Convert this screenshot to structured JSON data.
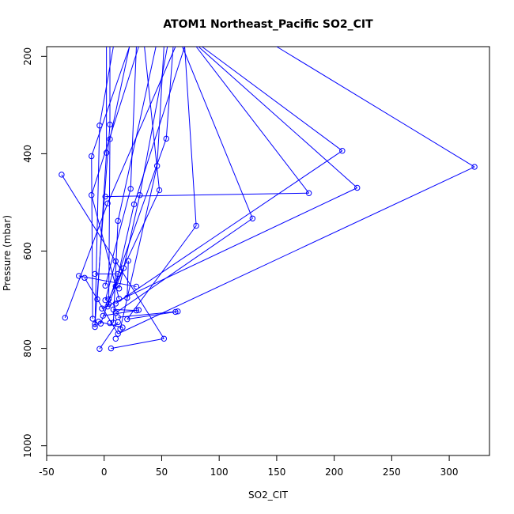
{
  "chart_data": {
    "type": "line",
    "title": "ATOM1 Northeast_Pacific SO2_CIT",
    "xlabel": "SO2_CIT",
    "ylabel": "Pressure (mbar)",
    "xlim": [
      -50,
      335
    ],
    "ylim": [
      1020,
      180
    ],
    "x_ticks": [
      -50,
      0,
      50,
      100,
      150,
      200,
      250,
      300
    ],
    "x_tick_labels": [
      "-50",
      "0",
      "50",
      "100",
      "150",
      "200",
      "250",
      "300"
    ],
    "y_ticks": [
      200,
      400,
      600,
      800,
      1000
    ],
    "y_tick_labels": [
      "200",
      "400",
      "600",
      "800",
      "1000"
    ],
    "grid": false,
    "series_color": "#0000ff",
    "marker": "open-circle",
    "series": [
      {
        "points": [
          [
            -4,
            801
          ],
          [
            6,
            800
          ],
          [
            10,
            780
          ],
          [
            12,
            770
          ],
          [
            14,
            760
          ],
          [
            16,
            757
          ],
          [
            62,
            725
          ],
          [
            64,
            724
          ],
          [
            20,
            740
          ],
          [
            12,
            736
          ],
          [
            8,
            720
          ],
          [
            3,
            714
          ],
          [
            -10,
            739
          ],
          [
            -34,
            737
          ],
          [
            10,
            727
          ],
          [
            28,
            722
          ],
          [
            30,
            721
          ],
          [
            -1,
            733
          ],
          [
            -8,
            750
          ],
          [
            -3,
            749
          ],
          [
            5,
            748
          ],
          [
            8,
            747
          ],
          [
            12,
            746
          ],
          [
            -5,
            745
          ],
          [
            -8,
            756
          ],
          [
            4,
            709
          ],
          [
            10,
            708
          ],
          [
            13,
            698
          ],
          [
            1,
            701
          ],
          [
            -6,
            699
          ],
          [
            4,
            699
          ],
          [
            20,
            696
          ],
          [
            28,
            673
          ],
          [
            1,
            671
          ],
          [
            -22,
            651
          ],
          [
            -17,
            655
          ],
          [
            -8,
            647
          ],
          [
            13,
            677
          ],
          [
            10,
            672
          ],
          [
            12,
            647
          ],
          [
            17,
            635
          ],
          [
            10,
            621
          ],
          [
            21,
            620
          ],
          [
            -2,
            718
          ],
          [
            -11,
            485
          ],
          [
            -11,
            405
          ],
          [
            -37,
            443
          ],
          [
            1,
            488
          ],
          [
            3,
            502
          ],
          [
            12,
            538
          ],
          [
            26,
            504
          ],
          [
            31,
            485
          ],
          [
            23,
            472
          ],
          [
            48,
            475
          ],
          [
            46,
            425
          ],
          [
            54,
            369
          ],
          [
            80,
            548
          ],
          [
            129,
            533
          ],
          [
            178,
            481
          ],
          [
            207,
            394
          ],
          [
            220,
            470
          ],
          [
            322,
            427
          ],
          [
            52,
            780
          ],
          [
            -4,
            342
          ],
          [
            5,
            340
          ],
          [
            5,
            370
          ],
          [
            2,
            398
          ]
        ]
      }
    ],
    "segments_to_top": [
      [
        [
          2,
          398
        ],
        [
          2,
          180
        ]
      ],
      [
        [
          5,
          340
        ],
        [
          5,
          180
        ]
      ],
      [
        [
          5,
          370
        ],
        [
          22,
          180
        ]
      ],
      [
        [
          -4,
          342
        ],
        [
          8,
          180
        ]
      ],
      [
        [
          -11,
          485
        ],
        [
          30,
          180
        ]
      ],
      [
        [
          -11,
          405
        ],
        [
          22,
          180
        ]
      ],
      [
        [
          23,
          472
        ],
        [
          28,
          180
        ]
      ],
      [
        [
          26,
          504
        ],
        [
          70,
          180
        ]
      ],
      [
        [
          31,
          485
        ],
        [
          55,
          180
        ]
      ],
      [
        [
          46,
          425
        ],
        [
          52,
          180
        ]
      ],
      [
        [
          48,
          475
        ],
        [
          35,
          180
        ]
      ],
      [
        [
          54,
          369
        ],
        [
          60,
          180
        ]
      ],
      [
        [
          80,
          548
        ],
        [
          70,
          180
        ]
      ],
      [
        [
          129,
          533
        ],
        [
          68,
          180
        ]
      ],
      [
        [
          178,
          481
        ],
        [
          80,
          180
        ]
      ],
      [
        [
          207,
          394
        ],
        [
          85,
          180
        ]
      ],
      [
        [
          220,
          470
        ],
        [
          82,
          180
        ]
      ],
      [
        [
          322,
          427
        ],
        [
          150,
          180
        ]
      ],
      [
        [
          12,
          538
        ],
        [
          45,
          180
        ]
      ],
      [
        [
          3,
          502
        ],
        [
          62,
          180
        ]
      ]
    ],
    "segments": [
      [
        [
          1,
          488
        ],
        [
          178,
          481
        ]
      ],
      [
        [
          -2,
          718
        ],
        [
          220,
          470
        ]
      ],
      [
        [
          10,
          708
        ],
        [
          207,
          394
        ]
      ],
      [
        [
          12,
          770
        ],
        [
          322,
          427
        ]
      ],
      [
        [
          10,
          727
        ],
        [
          129,
          533
        ]
      ],
      [
        [
          20,
          740
        ],
        [
          80,
          548
        ]
      ],
      [
        [
          -37,
          443
        ],
        [
          52,
          780
        ]
      ],
      [
        [
          -34,
          737
        ],
        [
          3,
          502
        ]
      ],
      [
        [
          -11,
          485
        ],
        [
          13,
          698
        ]
      ],
      [
        [
          -22,
          651
        ],
        [
          28,
          673
        ]
      ],
      [
        [
          -17,
          655
        ],
        [
          12,
          770
        ]
      ],
      [
        [
          4,
          699
        ],
        [
          48,
          475
        ]
      ],
      [
        [
          1,
          671
        ],
        [
          23,
          472
        ]
      ],
      [
        [
          10,
          672
        ],
        [
          26,
          504
        ]
      ],
      [
        [
          13,
          677
        ],
        [
          31,
          485
        ]
      ],
      [
        [
          14,
          760
        ],
        [
          46,
          425
        ]
      ],
      [
        [
          -3,
          749
        ],
        [
          54,
          369
        ]
      ],
      [
        [
          8,
          747
        ],
        [
          12,
          538
        ]
      ],
      [
        [
          -6,
          699
        ],
        [
          2,
          398
        ]
      ],
      [
        [
          4,
          709
        ],
        [
          5,
          370
        ]
      ],
      [
        [
          -8,
          756
        ],
        [
          -4,
          342
        ]
      ],
      [
        [
          -8,
          750
        ],
        [
          5,
          340
        ]
      ],
      [
        [
          -11,
          405
        ],
        [
          -10,
          739
        ]
      ],
      [
        [
          -5,
          745
        ],
        [
          16,
          757
        ]
      ],
      [
        [
          62,
          725
        ],
        [
          20,
          740
        ]
      ],
      [
        [
          64,
          724
        ],
        [
          12,
          736
        ]
      ],
      [
        [
          28,
          722
        ],
        [
          8,
          720
        ]
      ],
      [
        [
          30,
          721
        ],
        [
          -1,
          733
        ]
      ],
      [
        [
          3,
          714
        ],
        [
          17,
          635
        ]
      ],
      [
        [
          1,
          701
        ],
        [
          10,
          621
        ]
      ],
      [
        [
          20,
          696
        ],
        [
          21,
          620
        ]
      ],
      [
        [
          12,
          647
        ],
        [
          -8,
          647
        ]
      ],
      [
        [
          6,
          800
        ],
        [
          52,
          780
        ]
      ],
      [
        [
          -4,
          801
        ],
        [
          12,
          746
        ]
      ]
    ]
  }
}
